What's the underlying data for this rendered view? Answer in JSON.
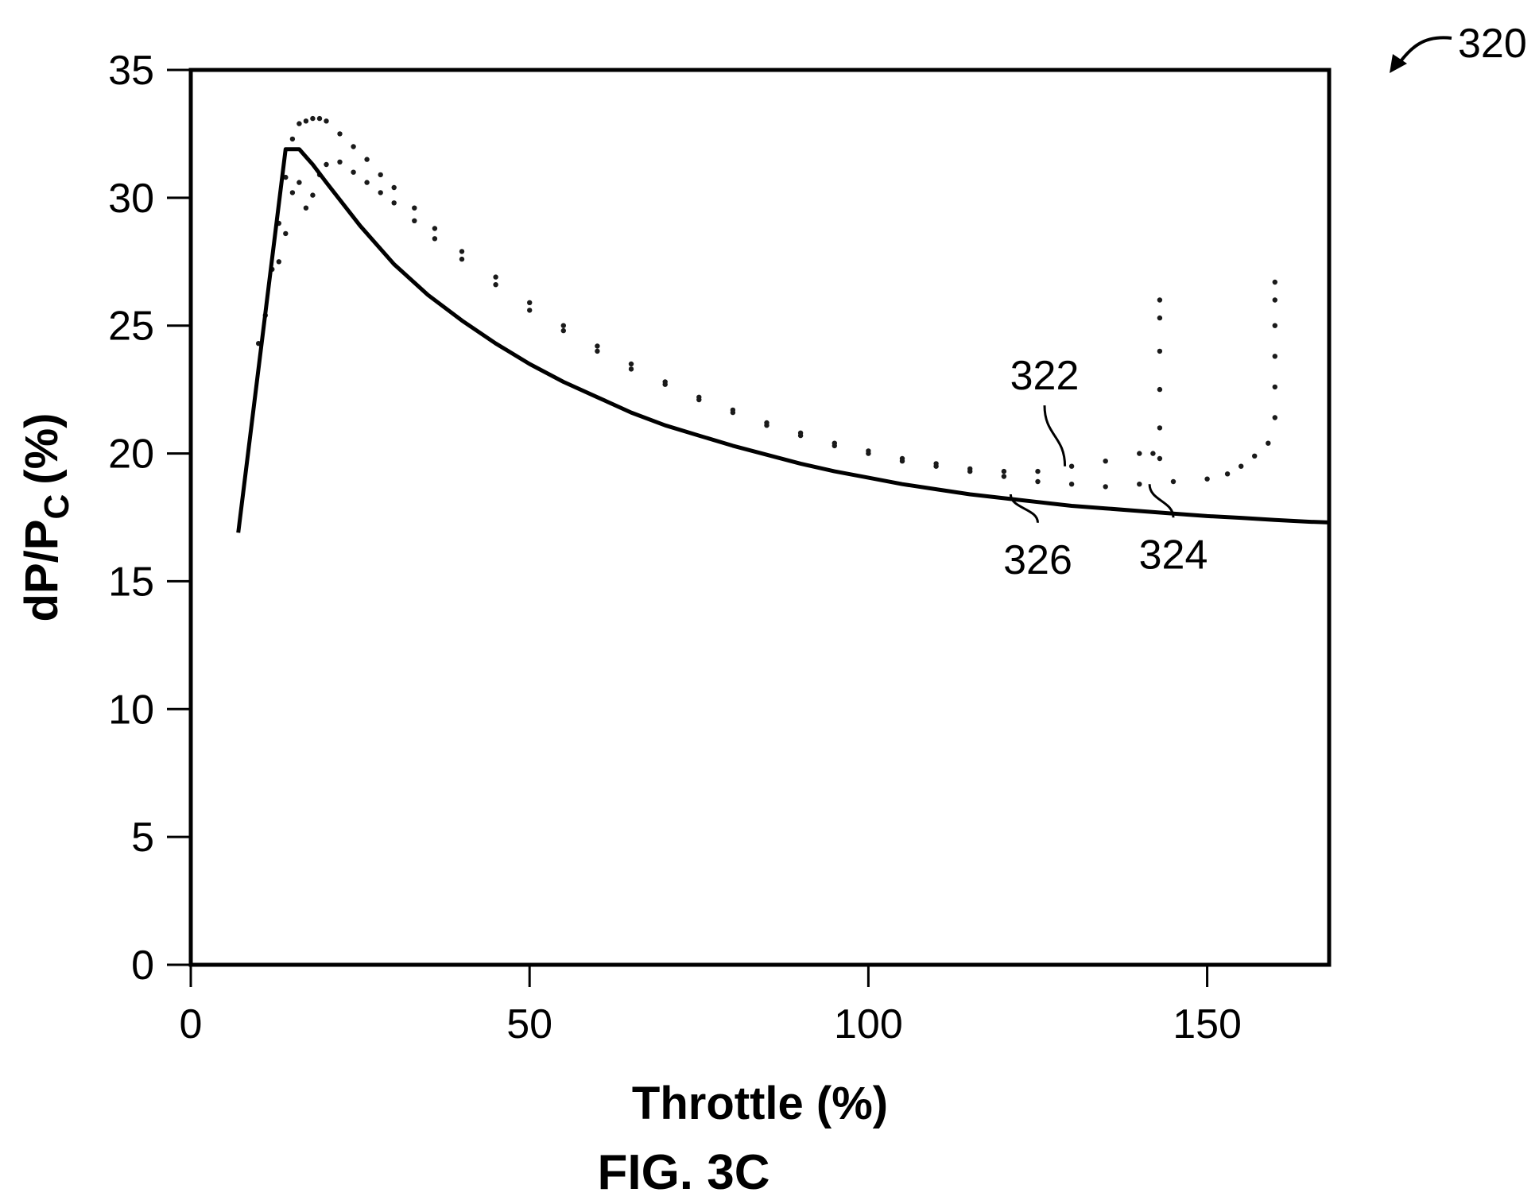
{
  "figure_caption": "FIG. 3C",
  "figure_ref": "320",
  "chart_data": {
    "type": "scatter",
    "xlabel": "Throttle (%)",
    "ylabel_main": "dP/P",
    "ylabel_sub": "C",
    "ylabel_unit": "(%)",
    "xlim": [
      0,
      168
    ],
    "ylim": [
      0,
      35
    ],
    "x_ticks": [
      0,
      50,
      100,
      150
    ],
    "y_ticks": [
      0,
      5,
      10,
      15,
      20,
      25,
      30,
      35
    ],
    "grid": false,
    "colors": {
      "line": "#000000",
      "points": "#1a1a1a"
    },
    "series": [
      {
        "id": "322",
        "kind": "points",
        "x": [
          10,
          11,
          12,
          13,
          14,
          15,
          16,
          17,
          18,
          19,
          20,
          22,
          24,
          26,
          28,
          30,
          33,
          36,
          40,
          45,
          50,
          55,
          60,
          65,
          70,
          75,
          80,
          85,
          90,
          95,
          100,
          105,
          110,
          115,
          120,
          125,
          130,
          135,
          140,
          142,
          143,
          143,
          143,
          143,
          143,
          143
        ],
        "y": [
          24.3,
          25.4,
          27.2,
          29.0,
          30.8,
          32.3,
          32.9,
          33.0,
          33.1,
          33.1,
          33.0,
          32.5,
          32.0,
          31.5,
          30.9,
          30.4,
          29.6,
          28.8,
          27.9,
          26.9,
          25.9,
          25.0,
          24.2,
          23.5,
          22.8,
          22.2,
          21.7,
          21.2,
          20.8,
          20.4,
          20.1,
          19.8,
          19.6,
          19.4,
          19.3,
          19.3,
          19.5,
          19.7,
          20.0,
          20.0,
          19.8,
          21.0,
          22.5,
          24.0,
          25.3,
          26.0
        ]
      },
      {
        "id": "324",
        "kind": "points",
        "x": [
          13,
          14,
          15,
          16,
          17,
          18,
          19,
          20,
          22,
          24,
          26,
          28,
          30,
          33,
          36,
          40,
          45,
          50,
          55,
          60,
          65,
          70,
          75,
          80,
          85,
          90,
          95,
          100,
          105,
          110,
          115,
          120,
          125,
          130,
          135,
          140,
          145,
          150,
          153,
          155,
          157,
          159,
          160,
          160,
          160,
          160,
          160,
          160
        ],
        "y": [
          27.5,
          28.6,
          30.2,
          30.6,
          29.6,
          30.1,
          30.9,
          31.3,
          31.4,
          31.0,
          30.6,
          30.2,
          29.8,
          29.1,
          28.4,
          27.6,
          26.6,
          25.6,
          24.8,
          24.0,
          23.3,
          22.7,
          22.1,
          21.6,
          21.1,
          20.7,
          20.3,
          20.0,
          19.7,
          19.5,
          19.3,
          19.1,
          18.9,
          18.8,
          18.7,
          18.8,
          18.9,
          19.0,
          19.2,
          19.5,
          19.9,
          20.4,
          21.4,
          22.6,
          23.8,
          25.0,
          26.0,
          26.7
        ]
      },
      {
        "id": "326",
        "kind": "line",
        "x": [
          7,
          14,
          16,
          18,
          20,
          25,
          30,
          35,
          40,
          45,
          50,
          55,
          60,
          65,
          70,
          75,
          80,
          85,
          90,
          95,
          100,
          105,
          110,
          115,
          120,
          125,
          130,
          135,
          140,
          145,
          150,
          155,
          160,
          165,
          168
        ],
        "y": [
          16.9,
          31.9,
          31.9,
          31.3,
          30.6,
          28.9,
          27.4,
          26.2,
          25.2,
          24.3,
          23.5,
          22.8,
          22.2,
          21.6,
          21.1,
          20.7,
          20.3,
          19.95,
          19.6,
          19.3,
          19.05,
          18.8,
          18.6,
          18.4,
          18.25,
          18.1,
          17.95,
          17.85,
          17.75,
          17.65,
          17.55,
          17.48,
          17.4,
          17.33,
          17.3
        ]
      }
    ],
    "annotations": [
      {
        "text": "322",
        "x": 129,
        "y": 19.5,
        "label_x": 126,
        "label_y": 22.5
      },
      {
        "text": "324",
        "x": 141.5,
        "y": 18.8,
        "label_x": 145,
        "label_y": 15.5
      },
      {
        "text": "326",
        "x": 121,
        "y": 18.4,
        "label_x": 125,
        "label_y": 15.3
      }
    ]
  }
}
